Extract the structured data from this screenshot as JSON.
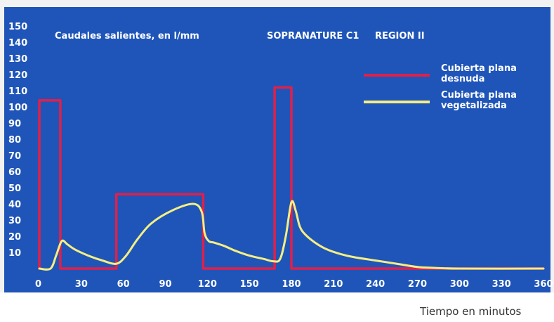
{
  "chart_data": {
    "type": "line",
    "title": "Caudales salientes, en l/mm",
    "subtitle": "SOPRANATURE C1     REGION II",
    "xlabel": "Tiempo en minutos",
    "ylabel": "",
    "xlim": [
      0,
      360
    ],
    "ylim": [
      0,
      150
    ],
    "x_ticks": [
      "0",
      "30",
      "60",
      "90",
      "120",
      "150",
      "180",
      "210",
      "240",
      "270",
      "300",
      "330",
      "360"
    ],
    "y_ticks": [
      "10",
      "20",
      "30",
      "40",
      "50",
      "60",
      "70",
      "80",
      "90",
      "100",
      "110",
      "120",
      "130",
      "140",
      "150"
    ],
    "legend_position": "top-right",
    "grid": false,
    "colors": {
      "background": "#1f55b8",
      "frame": "#f2f2f2",
      "desnuda": "#e0204a",
      "vegetalizada": "#f5ee82"
    },
    "series": [
      {
        "name": "Cubierta plana desnuda",
        "legend_lines": [
          "Cubierta plana",
          "desnuda"
        ],
        "x": [
          0,
          0,
          15,
          15,
          55,
          55,
          117,
          117,
          168,
          168,
          180,
          180,
          360
        ],
        "y": [
          0,
          104,
          104,
          0,
          0,
          46,
          46,
          0,
          0,
          112,
          112,
          0,
          0
        ]
      },
      {
        "name": "Cubierta plana vegetalizada",
        "legend_lines": [
          "Cubierta plana",
          "vegetalizada"
        ],
        "x": [
          0,
          8,
          12,
          16,
          20,
          25,
          35,
          45,
          55,
          62,
          70,
          80,
          95,
          110,
          116,
          118,
          121,
          125,
          132,
          140,
          150,
          160,
          167,
          172,
          176,
          180,
          183,
          186,
          190,
          197,
          205,
          215,
          225,
          240,
          255,
          270,
          280,
          300,
          360
        ],
        "y": [
          0,
          0,
          8,
          17,
          15,
          12,
          8,
          5,
          3,
          8,
          18,
          28,
          36,
          40,
          35,
          22,
          17,
          16,
          14,
          11,
          8,
          6,
          4.5,
          6,
          20,
          41,
          36,
          26,
          21,
          16,
          12,
          9,
          7,
          5,
          3,
          1,
          0.5,
          0,
          0
        ]
      }
    ]
  }
}
